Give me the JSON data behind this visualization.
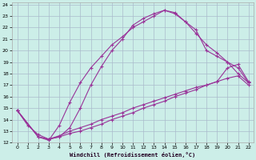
{
  "xlabel": "Windchill (Refroidissement éolien,°C)",
  "background_color": "#cceee8",
  "grid_color": "#aabbcc",
  "line_color1": "#993399",
  "line_color2": "#993399",
  "line_color3": "#993399",
  "line_color4": "#993399",
  "xlim": [
    -0.5,
    22.5
  ],
  "ylim": [
    12,
    24.2
  ],
  "xticks": [
    0,
    1,
    2,
    3,
    4,
    5,
    6,
    7,
    8,
    9,
    10,
    11,
    12,
    13,
    14,
    15,
    16,
    17,
    18,
    19,
    20,
    21,
    22
  ],
  "yticks": [
    12,
    13,
    14,
    15,
    16,
    17,
    18,
    19,
    20,
    21,
    22,
    23,
    24
  ],
  "curve1_x": [
    0,
    1,
    2,
    3,
    4,
    5,
    6,
    7,
    8,
    9,
    10,
    11,
    12,
    13,
    14,
    15,
    16,
    17,
    18,
    19,
    20,
    21,
    22
  ],
  "curve1_y": [
    14.8,
    13.5,
    12.7,
    12.3,
    12.5,
    13.3,
    15.0,
    17.0,
    18.6,
    20.0,
    21.0,
    22.2,
    22.8,
    23.2,
    23.5,
    23.3,
    22.5,
    21.8,
    20.0,
    19.5,
    19.0,
    18.0,
    17.2
  ],
  "curve2_x": [
    0,
    2,
    3,
    4,
    5,
    6,
    7,
    8,
    9,
    10,
    11,
    12,
    13,
    14,
    15,
    16,
    17,
    18,
    19,
    20,
    21,
    22
  ],
  "curve2_y": [
    14.8,
    12.5,
    12.2,
    13.5,
    15.5,
    17.2,
    18.5,
    19.5,
    20.5,
    21.2,
    22.0,
    22.5,
    23.0,
    23.5,
    23.2,
    22.5,
    21.5,
    20.5,
    19.8,
    19.0,
    18.5,
    17.2
  ],
  "line3_x": [
    0,
    2,
    3,
    4,
    5,
    6,
    7,
    8,
    9,
    10,
    11,
    12,
    13,
    14,
    15,
    16,
    17,
    18,
    19,
    20,
    21,
    22
  ],
  "line3_y": [
    14.8,
    12.5,
    12.3,
    12.5,
    12.8,
    13.0,
    13.3,
    13.6,
    14.0,
    14.3,
    14.6,
    15.0,
    15.3,
    15.6,
    16.0,
    16.3,
    16.6,
    17.0,
    17.3,
    18.5,
    18.8,
    17.3
  ],
  "line4_x": [
    0,
    2,
    3,
    4,
    5,
    6,
    7,
    8,
    9,
    10,
    11,
    12,
    13,
    14,
    15,
    16,
    17,
    18,
    19,
    20,
    21,
    22
  ],
  "line4_y": [
    14.8,
    12.5,
    12.3,
    12.6,
    13.0,
    13.3,
    13.6,
    14.0,
    14.3,
    14.6,
    15.0,
    15.3,
    15.6,
    15.9,
    16.2,
    16.5,
    16.8,
    17.0,
    17.3,
    17.6,
    17.8,
    17.0
  ],
  "figsize": [
    3.2,
    2.0
  ],
  "dpi": 100
}
